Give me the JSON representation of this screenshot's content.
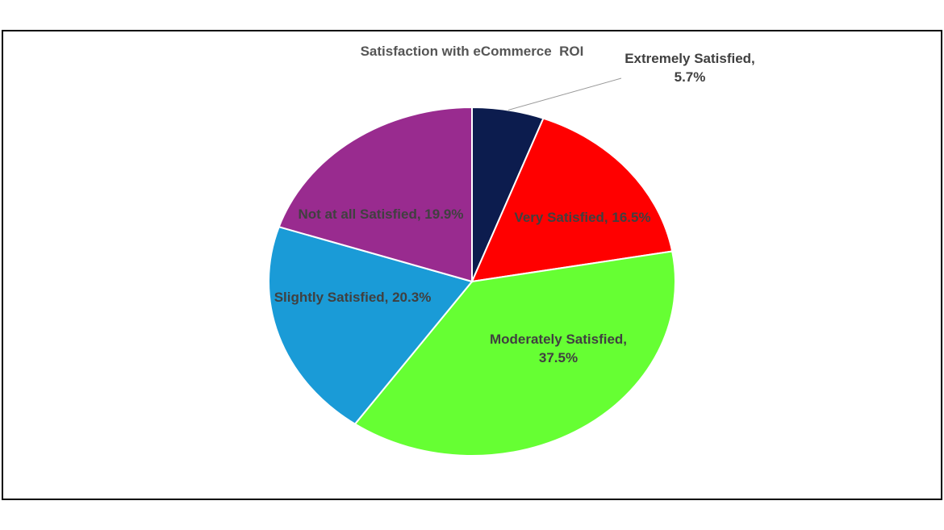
{
  "chart_data": {
    "type": "pie",
    "title": "Satisfaction with eCommerce  ROI",
    "values": [
      5.7,
      16.5,
      37.5,
      20.3,
      19.9
    ],
    "value_labels": [
      "Extremely Satisfied, 5.7%",
      "Very Satisfied, 16.5%",
      "Moderately Satisfied, 37.5%",
      "Slightly Satisfied, 20.3%",
      "Not at all Satisfied, 19.9%"
    ],
    "colors": [
      "#0c1c4e",
      "#ff0000",
      "#66ff33",
      "#1a9bd7",
      "#992b8f"
    ]
  }
}
